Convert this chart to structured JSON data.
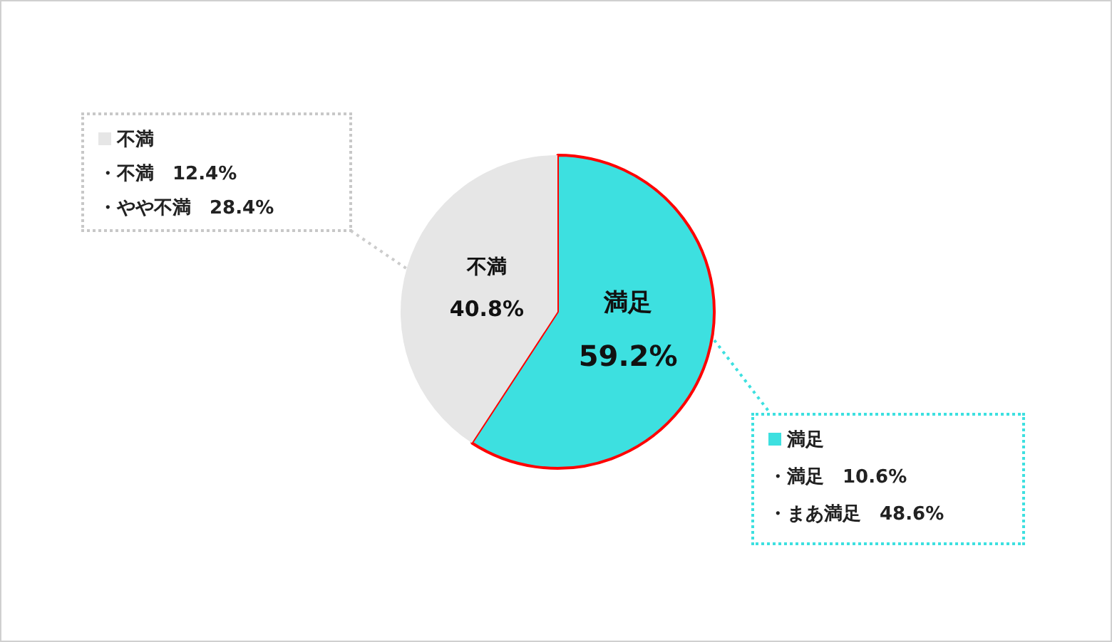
{
  "chart_data": {
    "type": "pie",
    "categories": [
      "満足",
      "不満"
    ],
    "values": [
      59.2,
      40.8
    ],
    "colors": [
      "#3de0e0",
      "#e6e6e6"
    ],
    "value_labels": [
      "59.2%",
      "40.8%"
    ],
    "legend": false,
    "annotations": [
      "満足",
      "・満足　10.6%",
      "・まあ満足　48.6%",
      "不満",
      "・不満　12.4%",
      "・やや不満　28.4%"
    ]
  }
}
